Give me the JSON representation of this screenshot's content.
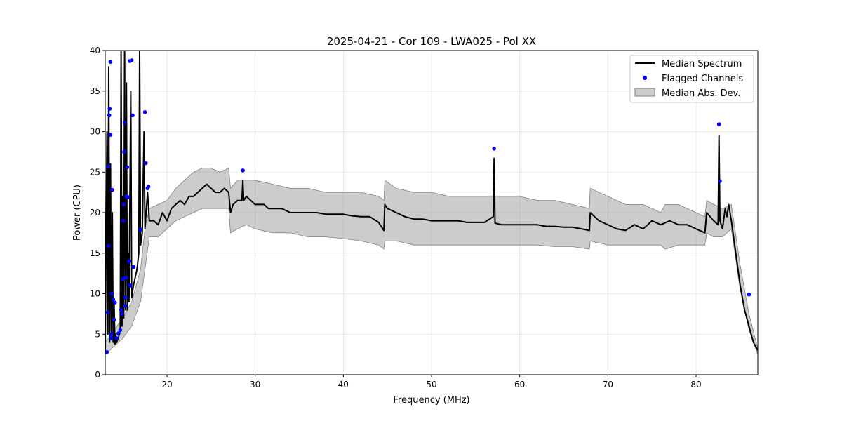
{
  "chart_data": {
    "type": "line",
    "title": "2025-04-21 - Cor 109 - LWA025 - Pol XX",
    "xlabel": "Frequency (MHz)",
    "ylabel": "Power (CPU)",
    "xlim": [
      13.0,
      87.0
    ],
    "ylim": [
      0,
      40
    ],
    "xticks": [
      20,
      30,
      40,
      50,
      60,
      70,
      80
    ],
    "yticks": [
      0,
      5,
      10,
      15,
      20,
      25,
      30,
      35,
      40
    ],
    "grid": true,
    "legend": {
      "position": "upper right",
      "entries": [
        "Median Spectrum",
        "Flagged Channels",
        "Median Abs. Dev."
      ]
    },
    "series": [
      {
        "name": "Median Spectrum",
        "kind": "line",
        "color": "#000000",
        "points": [
          [
            13.0,
            3.0
          ],
          [
            13.2,
            30.0
          ],
          [
            13.3,
            5.0
          ],
          [
            13.4,
            38.0
          ],
          [
            13.5,
            4.0
          ],
          [
            13.6,
            26.0
          ],
          [
            13.7,
            4.5
          ],
          [
            13.8,
            20.0
          ],
          [
            13.9,
            4.0
          ],
          [
            14.0,
            9.0
          ],
          [
            14.1,
            3.8
          ],
          [
            14.2,
            5.0
          ],
          [
            14.3,
            4.0
          ],
          [
            14.5,
            4.6
          ],
          [
            14.7,
            5.5
          ],
          [
            14.8,
            40.0
          ],
          [
            14.9,
            6.0
          ],
          [
            15.0,
            22.0
          ],
          [
            15.1,
            7.0
          ],
          [
            15.2,
            40.0
          ],
          [
            15.3,
            8.0
          ],
          [
            15.4,
            36.0
          ],
          [
            15.5,
            8.0
          ],
          [
            15.6,
            15.0
          ],
          [
            15.7,
            9.0
          ],
          [
            15.9,
            35.0
          ],
          [
            16.0,
            9.5
          ],
          [
            16.2,
            11.0
          ],
          [
            16.4,
            12.0
          ],
          [
            16.6,
            13.0
          ],
          [
            16.8,
            15.0
          ],
          [
            16.9,
            40.0
          ],
          [
            17.0,
            16.0
          ],
          [
            17.2,
            17.5
          ],
          [
            17.4,
            30.0
          ],
          [
            17.5,
            18.0
          ],
          [
            17.8,
            22.5
          ],
          [
            18.0,
            19.0
          ],
          [
            18.5,
            19.0
          ],
          [
            19.0,
            18.5
          ],
          [
            19.5,
            20.0
          ],
          [
            20.0,
            19.0
          ],
          [
            20.5,
            20.5
          ],
          [
            21.0,
            21.0
          ],
          [
            21.5,
            21.5
          ],
          [
            22.0,
            21.0
          ],
          [
            22.5,
            22.0
          ],
          [
            23.0,
            22.0
          ],
          [
            23.5,
            22.5
          ],
          [
            24.0,
            23.0
          ],
          [
            24.5,
            23.5
          ],
          [
            25.0,
            23.0
          ],
          [
            25.5,
            22.5
          ],
          [
            26.0,
            22.5
          ],
          [
            26.5,
            23.0
          ],
          [
            27.0,
            22.5
          ],
          [
            27.2,
            20.0
          ],
          [
            27.5,
            21.0
          ],
          [
            28.0,
            21.5
          ],
          [
            28.5,
            21.5
          ],
          [
            28.6,
            24.0
          ],
          [
            28.7,
            21.5
          ],
          [
            29.0,
            22.0
          ],
          [
            29.5,
            21.5
          ],
          [
            30.0,
            21.0
          ],
          [
            30.5,
            21.0
          ],
          [
            31.0,
            21.0
          ],
          [
            31.5,
            20.5
          ],
          [
            32.0,
            20.5
          ],
          [
            33.0,
            20.5
          ],
          [
            34.0,
            20.0
          ],
          [
            35.0,
            20.0
          ],
          [
            36.0,
            20.0
          ],
          [
            37.0,
            20.0
          ],
          [
            38.0,
            19.8
          ],
          [
            39.0,
            19.8
          ],
          [
            40.0,
            19.8
          ],
          [
            41.0,
            19.6
          ],
          [
            42.0,
            19.5
          ],
          [
            43.0,
            19.5
          ],
          [
            44.0,
            18.8
          ],
          [
            44.6,
            17.8
          ],
          [
            44.7,
            21.0
          ],
          [
            45.0,
            20.5
          ],
          [
            46.0,
            20.0
          ],
          [
            47.0,
            19.5
          ],
          [
            48.0,
            19.2
          ],
          [
            49.0,
            19.2
          ],
          [
            50.0,
            19.0
          ],
          [
            51.0,
            19.0
          ],
          [
            52.0,
            19.0
          ],
          [
            53.0,
            19.0
          ],
          [
            54.0,
            18.8
          ],
          [
            55.0,
            18.8
          ],
          [
            56.0,
            18.8
          ],
          [
            57.0,
            19.5
          ],
          [
            57.1,
            26.7
          ],
          [
            57.2,
            18.7
          ],
          [
            58.0,
            18.5
          ],
          [
            59.0,
            18.5
          ],
          [
            60.0,
            18.5
          ],
          [
            61.0,
            18.5
          ],
          [
            62.0,
            18.5
          ],
          [
            63.0,
            18.3
          ],
          [
            64.0,
            18.3
          ],
          [
            65.0,
            18.2
          ],
          [
            66.0,
            18.2
          ],
          [
            67.0,
            18.0
          ],
          [
            67.9,
            17.8
          ],
          [
            68.0,
            20.0
          ],
          [
            69.0,
            19.0
          ],
          [
            70.0,
            18.5
          ],
          [
            71.0,
            18.0
          ],
          [
            72.0,
            17.8
          ],
          [
            73.0,
            18.5
          ],
          [
            74.0,
            18.0
          ],
          [
            75.0,
            19.0
          ],
          [
            76.0,
            18.5
          ],
          [
            77.0,
            19.0
          ],
          [
            78.0,
            18.5
          ],
          [
            79.0,
            18.5
          ],
          [
            80.0,
            18.0
          ],
          [
            81.0,
            17.5
          ],
          [
            81.2,
            20.0
          ],
          [
            82.0,
            19.0
          ],
          [
            82.5,
            18.5
          ],
          [
            82.6,
            29.5
          ],
          [
            82.7,
            19.0
          ],
          [
            83.0,
            18.0
          ],
          [
            83.3,
            20.5
          ],
          [
            83.5,
            19.5
          ],
          [
            83.7,
            21.0
          ],
          [
            84.0,
            19.0
          ],
          [
            84.5,
            15.0
          ],
          [
            85.0,
            11.0
          ],
          [
            85.5,
            8.0
          ],
          [
            86.0,
            6.0
          ],
          [
            86.5,
            4.0
          ],
          [
            87.0,
            3.0
          ]
        ]
      },
      {
        "name": "Median Abs. Dev.",
        "kind": "band",
        "color": "#808080",
        "x": [
          13.0,
          14.0,
          15.0,
          16.0,
          17.0,
          17.5,
          18.0,
          19.0,
          20.0,
          21.0,
          22.0,
          23.0,
          24.0,
          25.0,
          26.0,
          27.0,
          27.2,
          28.0,
          29.0,
          30.0,
          32.0,
          34.0,
          36.0,
          38.0,
          40.0,
          42.0,
          44.0,
          44.6,
          44.7,
          46.0,
          48.0,
          50.0,
          52.0,
          54.0,
          56.0,
          58.0,
          60.0,
          62.0,
          64.0,
          66.0,
          67.9,
          68.0,
          70.0,
          72.0,
          74.0,
          76.0,
          76.5,
          78.0,
          80.0,
          81.0,
          81.2,
          82.0,
          83.0,
          84.0,
          85.0,
          86.0,
          87.0
        ],
        "low": [
          2.5,
          3.5,
          4.5,
          6.0,
          9.0,
          13.0,
          17.0,
          17.0,
          18.0,
          19.0,
          19.5,
          20.0,
          20.5,
          20.5,
          20.5,
          20.5,
          17.5,
          18.0,
          18.5,
          18.0,
          17.5,
          17.5,
          17.0,
          17.0,
          16.8,
          16.5,
          16.0,
          15.5,
          16.5,
          16.5,
          16.0,
          16.0,
          16.0,
          16.0,
          16.0,
          16.0,
          16.0,
          16.0,
          15.8,
          15.8,
          15.5,
          16.5,
          16.0,
          16.0,
          16.0,
          16.0,
          15.5,
          16.0,
          16.0,
          16.0,
          17.5,
          17.0,
          17.0,
          18.0,
          10.5,
          5.5,
          2.5
        ],
        "high": [
          4.0,
          5.5,
          7.0,
          9.0,
          13.0,
          18.0,
          20.5,
          21.0,
          21.5,
          23.0,
          24.0,
          25.0,
          25.5,
          25.5,
          25.0,
          25.5,
          23.0,
          24.0,
          24.0,
          24.0,
          23.5,
          23.0,
          23.0,
          22.5,
          22.5,
          22.5,
          22.0,
          21.5,
          24.0,
          23.0,
          22.5,
          22.5,
          22.0,
          22.0,
          22.0,
          22.0,
          22.0,
          21.5,
          21.5,
          21.0,
          20.5,
          23.0,
          22.0,
          21.0,
          21.0,
          20.0,
          21.0,
          21.0,
          20.0,
          19.5,
          21.5,
          21.0,
          20.5,
          21.0,
          13.5,
          7.5,
          3.2
        ]
      },
      {
        "name": "Flagged Channels",
        "kind": "scatter",
        "color": "#0000ff",
        "points": [
          [
            13.2,
            2.8
          ],
          [
            13.3,
            7.7
          ],
          [
            13.35,
            25.7
          ],
          [
            13.4,
            15.9
          ],
          [
            13.45,
            32.0
          ],
          [
            13.5,
            32.8
          ],
          [
            13.6,
            29.6
          ],
          [
            13.6,
            38.6
          ],
          [
            13.7,
            4.5
          ],
          [
            13.7,
            5.0
          ],
          [
            13.75,
            10.0
          ],
          [
            13.8,
            22.8
          ],
          [
            13.9,
            9.3
          ],
          [
            14.0,
            6.8
          ],
          [
            14.1,
            8.9
          ],
          [
            14.3,
            4.5
          ],
          [
            14.5,
            5.1
          ],
          [
            14.7,
            5.5
          ],
          [
            14.8,
            8.0
          ],
          [
            14.9,
            7.5
          ],
          [
            15.0,
            11.8
          ],
          [
            15.05,
            19.0
          ],
          [
            15.1,
            21.0
          ],
          [
            15.15,
            27.5
          ],
          [
            15.2,
            31.1
          ],
          [
            15.25,
            8.5
          ],
          [
            15.3,
            9.5
          ],
          [
            15.35,
            12.0
          ],
          [
            15.4,
            22.0
          ],
          [
            15.5,
            25.6
          ],
          [
            15.6,
            21.9
          ],
          [
            15.7,
            14.0
          ],
          [
            15.75,
            38.7
          ],
          [
            15.8,
            11.0
          ],
          [
            16.0,
            38.8
          ],
          [
            16.1,
            32.0
          ],
          [
            16.2,
            13.3
          ],
          [
            17.0,
            17.9
          ],
          [
            17.5,
            32.4
          ],
          [
            17.6,
            26.1
          ],
          [
            17.8,
            23.0
          ],
          [
            17.9,
            23.2
          ],
          [
            28.6,
            25.2
          ],
          [
            57.1,
            27.9
          ],
          [
            82.6,
            30.9
          ],
          [
            82.7,
            23.9
          ],
          [
            86.0,
            9.9
          ]
        ]
      }
    ]
  }
}
